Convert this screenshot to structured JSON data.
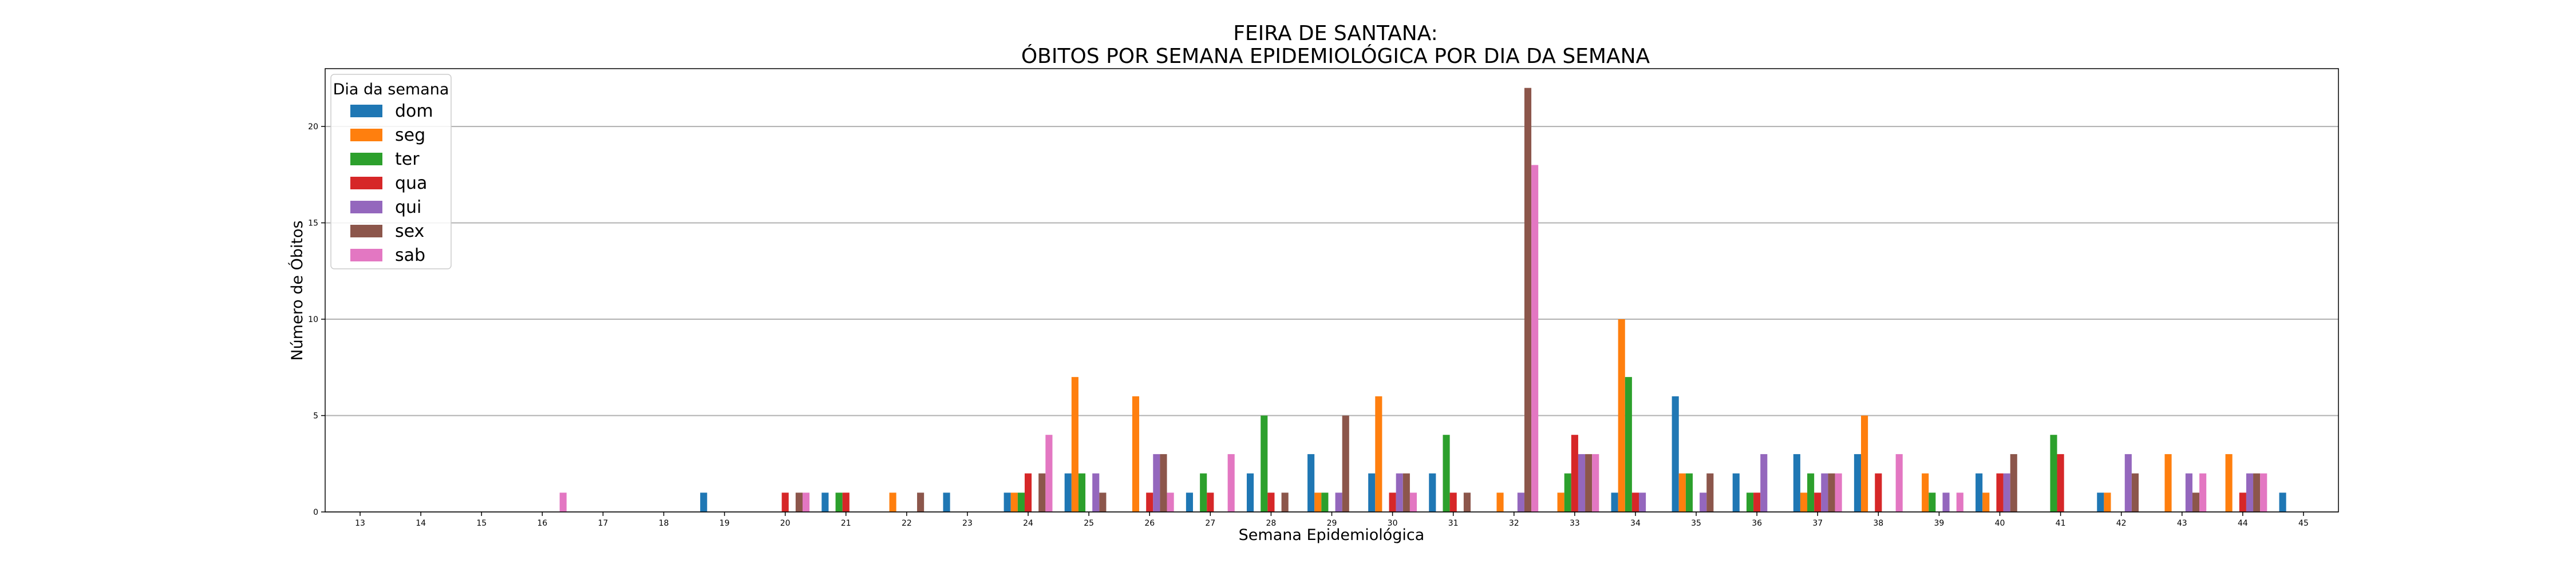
{
  "chart_data": {
    "type": "bar",
    "title_line1": "FEIRA DE SANTANA:",
    "title_line2": "ÓBITOS POR SEMANA EPIDEMIOLÓGICA POR DIA DA SEMANA",
    "xlabel": "Semana Epidemiológica",
    "ylabel": "Número de Óbitos",
    "ylim": [
      0,
      23
    ],
    "yticks": [
      0,
      5,
      10,
      15,
      20
    ],
    "grid": "y",
    "legend_title": "Dia da semana",
    "legend_position": "top-left",
    "categories": [
      "13",
      "14",
      "15",
      "16",
      "17",
      "18",
      "19",
      "20",
      "21",
      "22",
      "23",
      "24",
      "25",
      "26",
      "27",
      "28",
      "29",
      "30",
      "31",
      "32",
      "33",
      "34",
      "35",
      "36",
      "37",
      "38",
      "39",
      "40",
      "41",
      "42",
      "43",
      "44",
      "45"
    ],
    "series": [
      {
        "name": "dom",
        "color": "#1f77b4",
        "values": [
          0,
          0,
          0,
          0,
          0,
          0,
          1,
          0,
          1,
          0,
          1,
          1,
          2,
          0,
          1,
          2,
          3,
          2,
          2,
          0,
          0,
          1,
          6,
          2,
          3,
          3,
          0,
          2,
          0,
          1,
          0,
          0,
          1
        ]
      },
      {
        "name": "seg",
        "color": "#ff7f0e",
        "values": [
          0,
          0,
          0,
          0,
          0,
          0,
          0,
          0,
          0,
          1,
          0,
          1,
          7,
          6,
          0,
          0,
          1,
          6,
          0,
          1,
          1,
          10,
          2,
          0,
          1,
          5,
          2,
          1,
          0,
          1,
          3,
          3,
          0
        ]
      },
      {
        "name": "ter",
        "color": "#2ca02c",
        "values": [
          0,
          0,
          0,
          0,
          0,
          0,
          0,
          0,
          1,
          0,
          0,
          1,
          2,
          0,
          2,
          5,
          1,
          0,
          4,
          0,
          2,
          7,
          2,
          1,
          2,
          0,
          1,
          0,
          4,
          0,
          0,
          0,
          0
        ]
      },
      {
        "name": "qua",
        "color": "#d62728",
        "values": [
          0,
          0,
          0,
          0,
          0,
          0,
          0,
          1,
          1,
          0,
          0,
          2,
          0,
          1,
          1,
          1,
          0,
          1,
          1,
          0,
          4,
          1,
          0,
          1,
          1,
          2,
          0,
          2,
          3,
          0,
          0,
          1,
          0
        ]
      },
      {
        "name": "qui",
        "color": "#9467bd",
        "values": [
          0,
          0,
          0,
          0,
          0,
          0,
          0,
          0,
          0,
          0,
          0,
          0,
          2,
          3,
          0,
          0,
          1,
          2,
          0,
          1,
          3,
          1,
          1,
          3,
          2,
          0,
          1,
          2,
          0,
          3,
          2,
          2,
          0
        ]
      },
      {
        "name": "sex",
        "color": "#8c564b",
        "values": [
          0,
          0,
          0,
          0,
          0,
          0,
          0,
          1,
          0,
          1,
          0,
          2,
          1,
          3,
          0,
          1,
          5,
          2,
          1,
          22,
          3,
          0,
          2,
          0,
          2,
          0,
          0,
          3,
          0,
          2,
          1,
          2,
          0
        ]
      },
      {
        "name": "sab",
        "color": "#e377c2",
        "values": [
          0,
          0,
          0,
          1,
          0,
          0,
          0,
          1,
          0,
          0,
          0,
          4,
          0,
          1,
          3,
          0,
          0,
          1,
          0,
          18,
          3,
          0,
          0,
          0,
          2,
          3,
          1,
          0,
          0,
          0,
          2,
          2,
          0
        ]
      }
    ]
  }
}
